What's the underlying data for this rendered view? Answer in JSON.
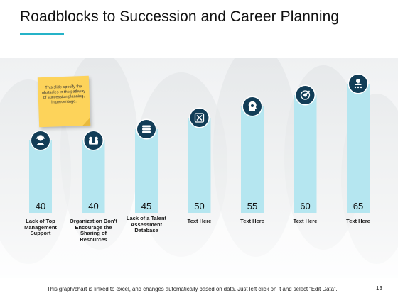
{
  "slide": {
    "title": "Roadblocks to Succession  and Career Planning",
    "note": "This slide specify the obstacles in the pathway of succession planning, in percentage.",
    "footer": "This graph/chart is linked to excel, and changes automatically based on data. Just left click on it and select “Edit Data”.",
    "page_number": "13"
  },
  "colors": {
    "accent_line": "#25b3c8",
    "bar_fill": "#b5e6f0",
    "icon_fill": "#123d57",
    "note_fill": "#fdd35a"
  },
  "chart_data": {
    "type": "bar",
    "categories": [
      "Lack of Top Management Support",
      "Organization Don’t Encourage the Sharing of Resources",
      "Lack of a Talent Assessment Database",
      "Text Here",
      "Text Here",
      "Text Here",
      "Text Here"
    ],
    "values": [
      40,
      40,
      45,
      50,
      55,
      60,
      65
    ],
    "value_labels": [
      "40",
      "40",
      "45",
      "50",
      "55",
      "60",
      "65"
    ],
    "icons": [
      "headset-person-icon",
      "meeting-people-icon",
      "database-icon",
      "tools-icon",
      "head-gear-icon",
      "target-icon",
      "star-person-icon"
    ]
  }
}
